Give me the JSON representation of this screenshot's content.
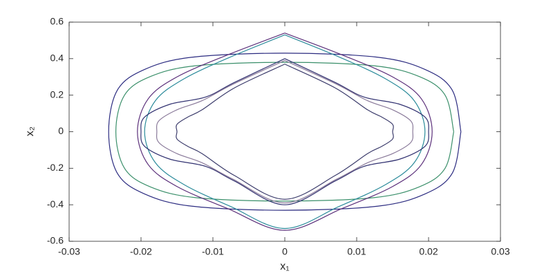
{
  "chart_data": {
    "type": "line",
    "xlabel": "x₁",
    "ylabel": "x₂",
    "xlim": [
      -0.03,
      0.03
    ],
    "xticks": [
      -0.03,
      -0.02,
      -0.01,
      0,
      0.01,
      0.02,
      0.03
    ],
    "ylim": [
      -0.6,
      0.6
    ],
    "yticks": [
      -0.6,
      -0.4,
      -0.2,
      0,
      0.2,
      0.4,
      0.6
    ],
    "series": [
      {
        "color": "#2b2b80",
        "x": [
          0.0245,
          0.0233,
          0.0195,
          0.0129,
          0,
          -0.0129,
          -0.0195,
          -0.0233,
          -0.0245,
          -0.0233,
          -0.0195,
          -0.0129,
          0,
          0.0129,
          0.0195,
          0.0233,
          0.0245
        ],
        "values": [
          0,
          0.227,
          0.341,
          0.408,
          0.43,
          0.408,
          0.341,
          0.227,
          0,
          -0.227,
          -0.341,
          -0.408,
          -0.43,
          -0.408,
          -0.341,
          -0.227,
          0
        ]
      },
      {
        "color": "#3a8f6a",
        "x": [
          0.0235,
          0.0223,
          0.0187,
          0.0124,
          0,
          -0.0124,
          -0.0187,
          -0.0223,
          -0.0235,
          -0.0223,
          -0.0187,
          -0.0124,
          0,
          0.0124,
          0.0187,
          0.0223,
          0.0235
        ],
        "values": [
          0,
          0.2,
          0.302,
          0.361,
          0.38,
          0.361,
          0.302,
          0.2,
          0,
          -0.2,
          -0.302,
          -0.361,
          -0.38,
          -0.361,
          -0.302,
          -0.2,
          0
        ]
      },
      {
        "color": "#5b2f7a",
        "x": [
          0,
          0.008,
          0.015,
          0.019,
          0.0205,
          0.019,
          0.015,
          0.008,
          0,
          -0.008,
          -0.015,
          -0.019,
          -0.0205,
          -0.019,
          -0.015,
          -0.008,
          0
        ],
        "values": [
          0.54,
          0.42,
          0.3,
          0.18,
          0,
          -0.18,
          -0.3,
          -0.42,
          -0.54,
          -0.42,
          -0.3,
          -0.18,
          0,
          0.18,
          0.3,
          0.42,
          0.54
        ]
      },
      {
        "color": "#2a8a9a",
        "x": [
          0,
          0.0075,
          0.014,
          0.018,
          0.0195,
          0.018,
          0.014,
          0.0075,
          0,
          -0.0075,
          -0.014,
          -0.018,
          -0.0195,
          -0.018,
          -0.014,
          -0.0075,
          0
        ],
        "values": [
          0.53,
          0.41,
          0.29,
          0.17,
          0,
          -0.17,
          -0.29,
          -0.41,
          -0.53,
          -0.41,
          -0.29,
          -0.17,
          0,
          0.17,
          0.29,
          0.41,
          0.53
        ]
      },
      {
        "color": "#303070",
        "x": [
          0,
          0.007,
          0.011,
          0.016,
          0.0195,
          0.02,
          0.0195,
          0.016,
          0.011,
          0.007,
          0,
          -0.007,
          -0.011,
          -0.016,
          -0.0195,
          -0.02,
          -0.0195,
          -0.016,
          -0.011,
          -0.007,
          0
        ],
        "values": [
          0.4,
          0.27,
          0.19,
          0.15,
          0.08,
          0,
          -0.08,
          -0.15,
          -0.19,
          -0.27,
          -0.4,
          -0.27,
          -0.19,
          -0.15,
          -0.08,
          0,
          0.08,
          0.15,
          0.19,
          0.27,
          0.4
        ]
      },
      {
        "color": "#8a7a9a",
        "x": [
          0,
          0.0072,
          0.0115,
          0.015,
          0.0175,
          0.0178,
          0.0175,
          0.015,
          0.0115,
          0.0072,
          0,
          -0.0072,
          -0.0115,
          -0.015,
          -0.0175,
          -0.0178,
          -0.0175,
          -0.015,
          -0.0115,
          -0.0072,
          0
        ],
        "values": [
          0.39,
          0.26,
          0.17,
          0.12,
          0.06,
          0,
          -0.06,
          -0.12,
          -0.17,
          -0.26,
          -0.39,
          -0.26,
          -0.17,
          -0.12,
          -0.06,
          0,
          0.06,
          0.12,
          0.17,
          0.26,
          0.39
        ]
      },
      {
        "color": "#3b3b6b",
        "x": [
          0,
          0.007,
          0.0115,
          0.0135,
          0.015,
          0.015,
          0.015,
          0.0135,
          0.0115,
          0.007,
          0,
          -0.007,
          -0.0115,
          -0.0135,
          -0.015,
          -0.015,
          -0.015,
          -0.0135,
          -0.0115,
          -0.007,
          0
        ],
        "values": [
          0.37,
          0.24,
          0.12,
          0.08,
          0.04,
          0,
          -0.04,
          -0.08,
          -0.12,
          -0.24,
          -0.37,
          -0.24,
          -0.12,
          -0.08,
          -0.04,
          0,
          0.04,
          0.08,
          0.12,
          0.24,
          0.37
        ]
      }
    ]
  }
}
